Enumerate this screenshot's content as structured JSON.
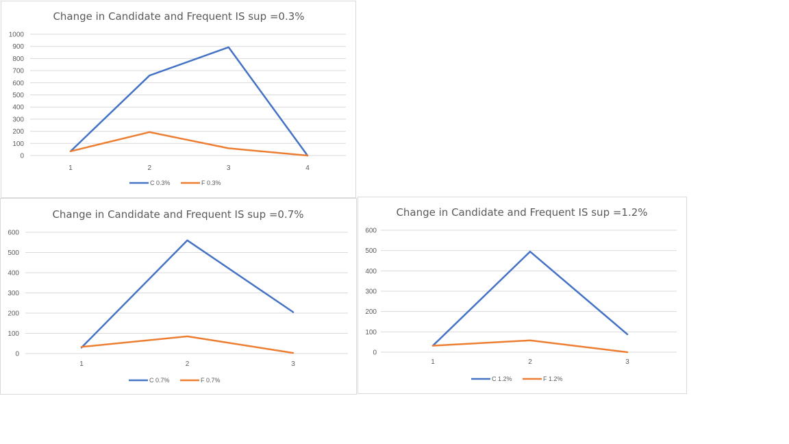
{
  "chart_data": [
    {
      "type": "line",
      "title": "Change in Candidate and Frequent IS sup =0.3%",
      "categories": [
        "1",
        "2",
        "3",
        "4"
      ],
      "series": [
        {
          "name": "C 0.3%",
          "color": "#4472c4",
          "values": [
            35,
            660,
            893,
            0
          ]
        },
        {
          "name": "F 0.3%",
          "color": "#ed7d31",
          "values": [
            35,
            193,
            60,
            0
          ]
        }
      ],
      "yticks": [
        0,
        100,
        200,
        300,
        400,
        500,
        600,
        700,
        800,
        900,
        1000
      ],
      "ylim": [
        0,
        1000
      ],
      "grid": true,
      "legend": "bottom"
    },
    {
      "type": "line",
      "title": "Change in Candidate and Frequent IS sup =0.7%",
      "categories": [
        "1",
        "2",
        "3"
      ],
      "series": [
        {
          "name": "C 0.7%",
          "color": "#4472c4",
          "values": [
            30,
            560,
            205
          ]
        },
        {
          "name": "F 0.7%",
          "color": "#ed7d31",
          "values": [
            33,
            85,
            3
          ]
        }
      ],
      "yticks": [
        0,
        100,
        200,
        300,
        400,
        500,
        600
      ],
      "ylim": [
        0,
        600
      ],
      "grid": true,
      "legend": "bottom"
    },
    {
      "type": "line",
      "title": "Change in Candidate and Frequent IS sup =1.2%",
      "categories": [
        "1",
        "2",
        "3"
      ],
      "series": [
        {
          "name": "C 1.2%",
          "color": "#4472c4",
          "values": [
            32,
            495,
            88
          ]
        },
        {
          "name": "F 1.2%",
          "color": "#ed7d31",
          "values": [
            32,
            58,
            0
          ]
        }
      ],
      "yticks": [
        0,
        100,
        200,
        300,
        400,
        500,
        600
      ],
      "ylim": [
        0,
        600
      ],
      "grid": true,
      "legend": "bottom"
    }
  ]
}
